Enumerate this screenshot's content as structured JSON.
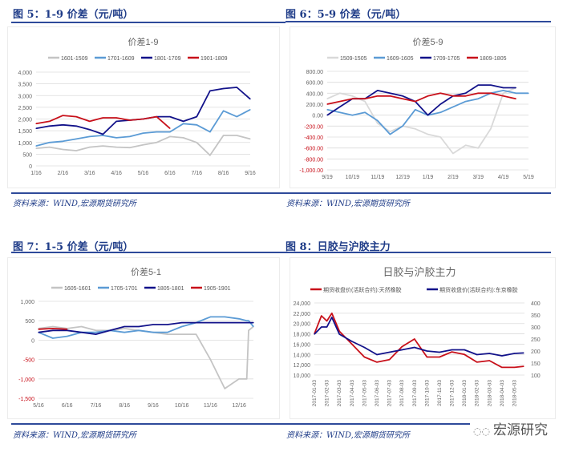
{
  "figures": [
    {
      "heading": "图 5：1-9 价差（元/吨）",
      "source": "资料来源：WIND,宏源期货研究所"
    },
    {
      "heading": "图 6：5-9 价差（元/吨）",
      "source": "资料来源：WIND,宏源期货研究所"
    },
    {
      "heading": "图 7：1-5 价差（元/吨）",
      "source": "资料来源：WIND,宏源期货研究所"
    },
    {
      "heading": "图 8：日胶与沪胶主力",
      "source": "资料来源：WIND,宏源期货研究所"
    }
  ],
  "watermark": {
    "text": "宏源研究",
    "icon": "wechat-icon"
  },
  "colors": {
    "gray": "#c4c4c4",
    "lightblue": "#5b9bd5",
    "navy": "#12128a",
    "red": "#c8101a",
    "heading": "#1f3c88"
  },
  "chart_data": [
    {
      "type": "line",
      "title": "价差1-9",
      "x_ticks": [
        "1/16",
        "2/16",
        "3/16",
        "4/16",
        "5/16",
        "6/16",
        "7/16",
        "8/16",
        "9/16"
      ],
      "y_ticks": [
        "0",
        "500",
        "1,000",
        "1,500",
        "2,000",
        "2,500",
        "3,000",
        "3,500",
        "4,000"
      ],
      "ylim": [
        0,
        4000
      ],
      "grid": true,
      "legend": "top",
      "x": [
        "1/16",
        "2/1",
        "2/16",
        "3/1",
        "3/16",
        "4/1",
        "4/16",
        "5/1",
        "5/16",
        "6/1",
        "6/16",
        "7/1",
        "7/16",
        "8/1",
        "8/16",
        "9/1",
        "9/16"
      ],
      "series": [
        {
          "name": "1601-1509",
          "color": "#c4c4c4",
          "values": [
            750,
            800,
            700,
            650,
            800,
            850,
            800,
            780,
            900,
            1000,
            1250,
            1200,
            1000,
            450,
            1300,
            1300,
            1150
          ]
        },
        {
          "name": "1701-1609",
          "color": "#5b9bd5",
          "values": [
            850,
            1000,
            1050,
            1150,
            1250,
            1300,
            1200,
            1250,
            1400,
            1450,
            1450,
            1800,
            1750,
            1450,
            2350,
            2100,
            2400
          ]
        },
        {
          "name": "1801-1709",
          "color": "#12128a",
          "values": [
            1600,
            1700,
            1750,
            1700,
            1550,
            1350,
            1900,
            1950,
            2000,
            2100,
            2100,
            1900,
            2100,
            3200,
            3300,
            3350,
            2850
          ]
        },
        {
          "name": "1901-1809",
          "color": "#c8101a",
          "values": [
            1800,
            1900,
            2150,
            2100,
            1900,
            2050,
            2050,
            1950,
            2000,
            2100,
            1600,
            null,
            null,
            null,
            null,
            null,
            null
          ]
        }
      ]
    },
    {
      "type": "line",
      "title": "价差5-9",
      "x_ticks": [
        "9/19",
        "10/19",
        "11/19",
        "12/19",
        "1/19",
        "2/19",
        "3/19",
        "4/19",
        "5/19"
      ],
      "y_ticks": [
        "-1,000.00",
        "-800.00",
        "-600.00",
        "-400.00",
        "-200.00",
        "0.00",
        "200.00",
        "400.00",
        "600.00",
        "800.00"
      ],
      "negative_tick_color": "#c8101a",
      "ylim": [
        -1000,
        800
      ],
      "grid": true,
      "legend": "top",
      "x": [
        "9/19",
        "10/4",
        "10/19",
        "11/4",
        "11/19",
        "12/4",
        "12/19",
        "1/4",
        "1/19",
        "2/4",
        "2/19",
        "3/4",
        "3/19",
        "4/4",
        "4/19",
        "5/4",
        "5/19"
      ],
      "series": [
        {
          "name": "1509-1505",
          "color": "#d9d9d9",
          "values": [
            300,
            400,
            350,
            250,
            -150,
            -300,
            -200,
            -250,
            -350,
            -400,
            -700,
            -550,
            -600,
            -250,
            400,
            500,
            null
          ]
        },
        {
          "name": "1609-1605",
          "color": "#5b9bd5",
          "values": [
            100,
            50,
            0,
            50,
            -100,
            -350,
            -200,
            100,
            0,
            50,
            150,
            250,
            300,
            400,
            450,
            400,
            400
          ]
        },
        {
          "name": "1709-1705",
          "color": "#12128a",
          "values": [
            0,
            150,
            300,
            300,
            450,
            400,
            350,
            250,
            0,
            200,
            350,
            400,
            550,
            550,
            500,
            500,
            null
          ]
        },
        {
          "name": "1809-1805",
          "color": "#c8101a",
          "values": [
            200,
            250,
            300,
            300,
            350,
            350,
            300,
            250,
            350,
            400,
            350,
            350,
            400,
            400,
            350,
            300,
            null
          ]
        }
      ]
    },
    {
      "type": "line",
      "title": "价差5-1",
      "x_ticks": [
        "5/16",
        "6/16",
        "7/16",
        "8/16",
        "9/16",
        "10/16",
        "11/16",
        "12/16"
      ],
      "y_ticks": [
        "-1,500",
        "-1,000",
        "-500",
        "0",
        "500",
        "1,000"
      ],
      "negative_tick_color": "#c8101a",
      "ylim": [
        -1500,
        1000
      ],
      "grid": true,
      "legend": "top",
      "x": [
        "5/16",
        "6/1",
        "6/16",
        "7/1",
        "7/16",
        "8/1",
        "8/16",
        "9/1",
        "9/16",
        "10/1",
        "10/16",
        "11/1",
        "11/16",
        "12/1",
        "12/16",
        "12/24",
        "12/26",
        "12/31"
      ],
      "series": [
        {
          "name": "1605-1601",
          "color": "#c4c4c4",
          "values": [
            300,
            350,
            300,
            350,
            250,
            250,
            300,
            250,
            200,
            150,
            150,
            150,
            -500,
            -1250,
            -1000,
            -1000,
            250,
            350
          ]
        },
        {
          "name": "1705-1701",
          "color": "#5b9bd5",
          "values": [
            200,
            50,
            100,
            200,
            200,
            250,
            200,
            250,
            200,
            200,
            350,
            450,
            600,
            600,
            550,
            500,
            500,
            350
          ]
        },
        {
          "name": "1805-1801",
          "color": "#12128a",
          "values": [
            200,
            250,
            250,
            200,
            150,
            250,
            350,
            350,
            400,
            400,
            450,
            450,
            450,
            450,
            450,
            450,
            450,
            450
          ]
        },
        {
          "name": "1905-1901",
          "color": "#c8101a",
          "values": [
            280,
            300,
            280,
            null,
            null,
            null,
            null,
            null,
            null,
            null,
            null,
            null,
            null,
            null,
            null,
            null,
            null,
            null
          ]
        }
      ]
    },
    {
      "type": "line",
      "title": "日胶与沪胶主力",
      "x_ticks": [
        "2017-01-03",
        "2017-02-03",
        "2017-03-03",
        "2017-04-03",
        "2017-05-03",
        "2017-06-03",
        "2017-07-03",
        "2017-08-03",
        "2017-09-03",
        "2017-10-03",
        "2017-11-03",
        "2017-12-03",
        "2018-01-03",
        "2018-02-03",
        "2018-03-03",
        "2018-04-03",
        "2018-05-03"
      ],
      "y_ticks": [
        "10,000",
        "12,000",
        "14,000",
        "16,000",
        "18,000",
        "20,000",
        "22,000",
        "24,000"
      ],
      "ylim": [
        10000,
        24000
      ],
      "y2_ticks": [
        "100",
        "150",
        "200",
        "250",
        "300",
        "350",
        "400"
      ],
      "y2lim": [
        100,
        400
      ],
      "grid": true,
      "legend": "top",
      "x": [
        "2017-01-03",
        "2017-01-20",
        "2017-02-03",
        "2017-02-15",
        "2017-03-03",
        "2017-04-03",
        "2017-05-03",
        "2017-06-03",
        "2017-07-03",
        "2017-08-03",
        "2017-09-03",
        "2017-10-03",
        "2017-11-03",
        "2017-12-03",
        "2018-01-03",
        "2018-02-03",
        "2018-03-03",
        "2018-04-03",
        "2018-05-03",
        "2018-05-25"
      ],
      "series": [
        {
          "name": "期货收盘价(活跃合约):天然橡胶",
          "axis": "left",
          "color": "#c8101a",
          "values": [
            18000,
            21500,
            20500,
            22000,
            18500,
            16000,
            13500,
            12500,
            13000,
            15500,
            17000,
            13500,
            13500,
            14500,
            14000,
            12500,
            12800,
            11500,
            11500,
            11700
          ]
        },
        {
          "name": "期货收盘价(活跃合约):东京橡胶",
          "axis": "right",
          "color": "#12128a",
          "values": [
            270,
            300,
            300,
            340,
            270,
            240,
            215,
            185,
            195,
            205,
            215,
            200,
            195,
            205,
            205,
            185,
            190,
            180,
            190,
            192
          ]
        }
      ]
    }
  ]
}
